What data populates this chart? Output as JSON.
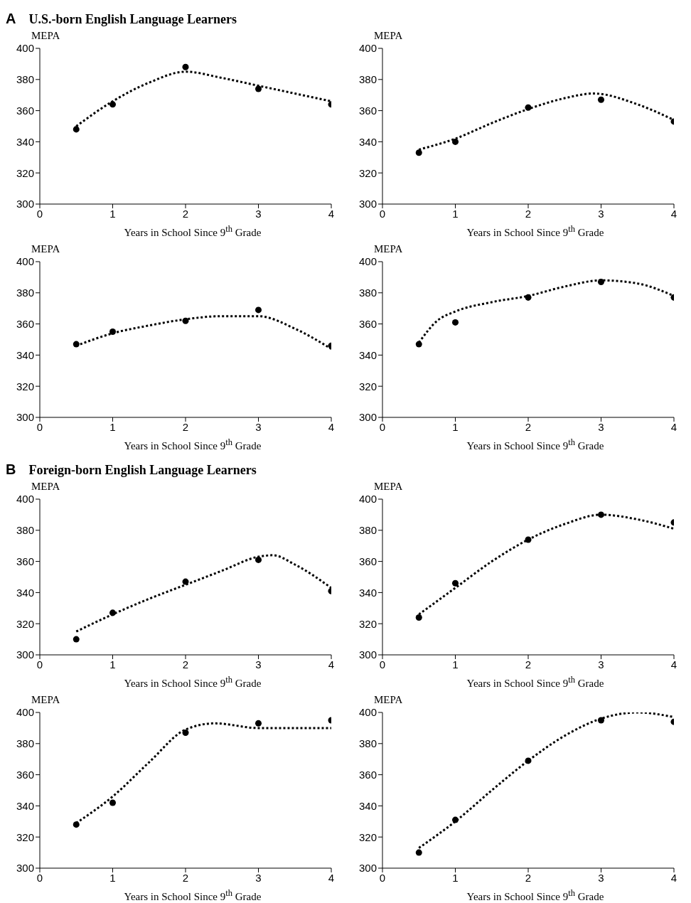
{
  "chart_data": [
    {
      "type": "scatter",
      "title": "U.S.-born English Language Learners",
      "annotations": [
        "A"
      ],
      "xlabel": "Years in School Since 9$^{th}$ Grade",
      "ylabel": "MEPA",
      "xlim": [
        0,
        4
      ],
      "xticks": [
        0,
        1,
        2,
        3,
        4
      ],
      "ylim": [
        300,
        400
      ],
      "yticks": [
        300,
        320,
        340,
        360,
        380,
        400
      ],
      "series": [
        {
          "marker": "circle",
          "color": "#000000",
          "x": [
            0.5,
            1,
            2,
            3,
            4
          ],
          "values": [
            348,
            364,
            388,
            374,
            364
          ]
        },
        {
          "type": "line",
          "marker": "none",
          "color": "#000000",
          "line_style": "dotted",
          "x": [
            0.5,
            1,
            1.5,
            2,
            2.5,
            3,
            3.5,
            4
          ],
          "values": [
            350,
            366,
            378,
            385,
            381,
            376,
            371,
            366
          ]
        }
      ]
    },
    {
      "type": "scatter",
      "xlabel": "Years in School Since 9$^{th}$ Grade",
      "ylabel": "MEPA",
      "xlim": [
        0,
        4
      ],
      "xticks": [
        0,
        1,
        2,
        3,
        4
      ],
      "ylim": [
        300,
        400
      ],
      "yticks": [
        300,
        320,
        340,
        360,
        380,
        400
      ],
      "series": [
        {
          "marker": "circle",
          "color": "#000000",
          "x": [
            0.5,
            1,
            2,
            3,
            4
          ],
          "values": [
            333,
            340,
            362,
            367,
            353
          ]
        },
        {
          "type": "line",
          "marker": "none",
          "color": "#000000",
          "line_style": "dotted",
          "x": [
            0.5,
            1,
            1.5,
            2,
            2.5,
            2.9,
            3.5,
            4
          ],
          "values": [
            335,
            342,
            352,
            361,
            368,
            371,
            364,
            354
          ]
        }
      ]
    },
    {
      "type": "scatter",
      "xlabel": "Years in School Since 9$^{th}$ Grade",
      "ylabel": "MEPA",
      "xlim": [
        0,
        4
      ],
      "xticks": [
        0,
        1,
        2,
        3,
        4
      ],
      "ylim": [
        300,
        400
      ],
      "yticks": [
        300,
        320,
        340,
        360,
        380,
        400
      ],
      "series": [
        {
          "marker": "circle",
          "color": "#000000",
          "x": [
            0.5,
            1,
            2,
            3,
            4
          ],
          "values": [
            347,
            355,
            362,
            369,
            346
          ]
        },
        {
          "type": "line",
          "marker": "none",
          "color": "#000000",
          "line_style": "dotted",
          "x": [
            0.5,
            1,
            1.5,
            2,
            2.5,
            3,
            3.5,
            4
          ],
          "values": [
            346,
            354,
            359,
            363,
            365,
            365,
            357,
            344
          ]
        }
      ]
    },
    {
      "type": "scatter",
      "xlabel": "Years in School Since 9$^{th}$ Grade",
      "ylabel": "MEPA",
      "xlim": [
        0,
        4
      ],
      "xticks": [
        0,
        1,
        2,
        3,
        4
      ],
      "ylim": [
        300,
        400
      ],
      "yticks": [
        300,
        320,
        340,
        360,
        380,
        400
      ],
      "series": [
        {
          "marker": "circle",
          "color": "#000000",
          "x": [
            0.5,
            1,
            2,
            3,
            4
          ],
          "values": [
            347,
            361,
            377,
            387,
            377
          ]
        },
        {
          "type": "line",
          "marker": "none",
          "color": "#000000",
          "line_style": "dotted",
          "x": [
            0.5,
            0.75,
            1,
            1.5,
            2,
            2.5,
            3,
            3.5,
            4
          ],
          "values": [
            348,
            362,
            368,
            374,
            378,
            384,
            388,
            386,
            378
          ]
        }
      ]
    },
    {
      "type": "scatter",
      "title": "Foreign-born English Language Learners",
      "annotations": [
        "B"
      ],
      "xlabel": "Years in School Since 9$^{th}$ Grade",
      "ylabel": "MEPA",
      "xlim": [
        0,
        4
      ],
      "xticks": [
        0,
        1,
        2,
        3,
        4
      ],
      "ylim": [
        300,
        400
      ],
      "yticks": [
        300,
        320,
        340,
        360,
        380,
        400
      ],
      "series": [
        {
          "marker": "circle",
          "color": "#000000",
          "x": [
            0.5,
            1,
            2,
            3,
            4
          ],
          "values": [
            310,
            327,
            347,
            361,
            341
          ]
        },
        {
          "type": "line",
          "marker": "none",
          "color": "#000000",
          "line_style": "dotted",
          "x": [
            0.5,
            1,
            1.5,
            2,
            2.5,
            3,
            3.2,
            3.5,
            4
          ],
          "values": [
            315,
            326,
            336,
            345,
            354,
            363,
            364,
            358,
            343
          ]
        }
      ]
    },
    {
      "type": "scatter",
      "xlabel": "Years in School Since 9$^{th}$ Grade",
      "ylabel": "MEPA",
      "xlim": [
        0,
        4
      ],
      "xticks": [
        0,
        1,
        2,
        3,
        4
      ],
      "ylim": [
        300,
        400
      ],
      "yticks": [
        300,
        320,
        340,
        360,
        380,
        400
      ],
      "series": [
        {
          "marker": "circle",
          "color": "#000000",
          "x": [
            0.5,
            1,
            2,
            3,
            4
          ],
          "values": [
            324,
            346,
            374,
            390,
            385
          ]
        },
        {
          "type": "line",
          "marker": "none",
          "color": "#000000",
          "line_style": "dotted",
          "x": [
            0.5,
            1,
            1.5,
            2,
            2.5,
            3,
            3.5,
            4
          ],
          "values": [
            326,
            343,
            360,
            374,
            384,
            390,
            387,
            381
          ]
        }
      ]
    },
    {
      "type": "scatter",
      "xlabel": "Years in School Since 9$^{th}$ Grade",
      "ylabel": "MEPA",
      "xlim": [
        0,
        4
      ],
      "xticks": [
        0,
        1,
        2,
        3,
        4
      ],
      "ylim": [
        300,
        400
      ],
      "yticks": [
        300,
        320,
        340,
        360,
        380,
        400
      ],
      "series": [
        {
          "marker": "circle",
          "color": "#000000",
          "x": [
            0.5,
            1,
            2,
            3,
            4
          ],
          "values": [
            328,
            342,
            387,
            393,
            395
          ]
        },
        {
          "type": "line",
          "marker": "none",
          "color": "#000000",
          "line_style": "dotted",
          "x": [
            0.5,
            1,
            1.5,
            2,
            2.4,
            3,
            3.5,
            4
          ],
          "values": [
            329,
            346,
            368,
            389,
            393,
            390,
            390,
            390
          ]
        }
      ]
    },
    {
      "type": "scatter",
      "xlabel": "Years in School Since 9$^{th}$ Grade",
      "ylabel": "MEPA",
      "xlim": [
        0,
        4
      ],
      "xticks": [
        0,
        1,
        2,
        3,
        4
      ],
      "ylim": [
        300,
        400
      ],
      "yticks": [
        300,
        320,
        340,
        360,
        380,
        400
      ],
      "series": [
        {
          "marker": "circle",
          "color": "#000000",
          "x": [
            0.5,
            1,
            2,
            3,
            4
          ],
          "values": [
            310,
            331,
            369,
            395,
            394
          ]
        },
        {
          "type": "line",
          "marker": "none",
          "color": "#000000",
          "line_style": "dotted",
          "x": [
            0.5,
            1,
            1.5,
            2,
            2.5,
            3,
            3.5,
            4
          ],
          "values": [
            313,
            330,
            350,
            369,
            385,
            396,
            400,
            397
          ]
        }
      ]
    }
  ]
}
